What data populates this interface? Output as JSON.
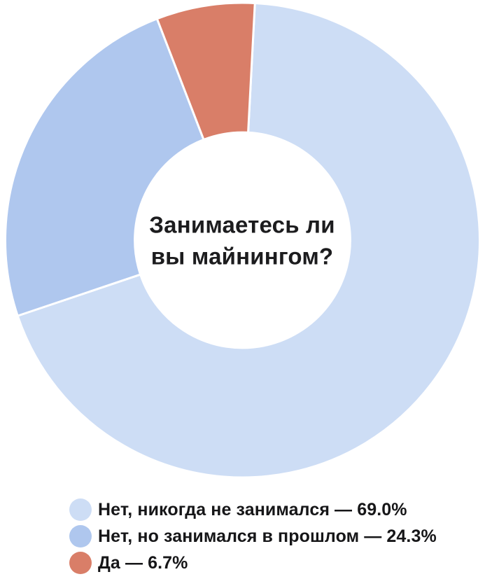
{
  "chart_data": {
    "type": "pie",
    "variant": "donut",
    "title": "Занимаетесь ли вы майнингом?",
    "categories": [
      "Нет, никогда не занимался",
      "Нет, но занимался в прошлом",
      "Да"
    ],
    "values": [
      69.0,
      24.3,
      6.7
    ],
    "unit": "%",
    "segments": [
      {
        "label": "Нет, никогда не занимался",
        "value": 69.0,
        "color": "#cdddf5",
        "legend_label": "Нет, никогда не занимался — 69.0%"
      },
      {
        "label": "Нет, но занимался в прошлом",
        "value": 24.3,
        "color": "#afc7ee",
        "legend_label": "Нет, но занимался в прошлом — 24.3%"
      },
      {
        "label": "Да",
        "value": 6.7,
        "color": "#d97e68",
        "legend_label": "Да — 6.7%"
      }
    ],
    "layout": {
      "start_angle_deg": 3,
      "clockwise": true,
      "inner_radius_ratio": 0.454,
      "slice_gap_color": "#ffffff",
      "slice_gap_width": 3,
      "legend_position": "bottom-left",
      "title_position": "center-of-donut",
      "grid": false
    }
  }
}
